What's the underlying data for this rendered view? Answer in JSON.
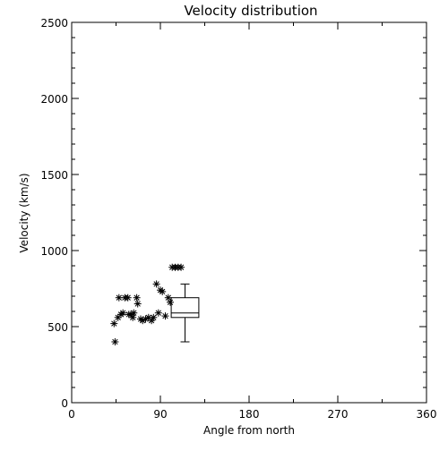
{
  "chart_data": {
    "type": "scatter",
    "title": "Velocity distribution",
    "xlabel": "Angle from north",
    "ylabel": "Velocity (km/s)",
    "xlim": [
      0,
      360
    ],
    "ylim": [
      0,
      2500
    ],
    "xticks": [
      0,
      90,
      180,
      270,
      360
    ],
    "yticks": [
      0,
      500,
      1000,
      1500,
      2000,
      2500
    ],
    "grid": false,
    "marker": "asterisk",
    "colors": {
      "ink": "#000000",
      "background": "#ffffff"
    },
    "series": [
      {
        "points": [
          [
            43,
            520
          ],
          [
            44,
            400
          ],
          [
            47,
            560
          ],
          [
            48,
            690
          ],
          [
            50,
            580
          ],
          [
            52,
            590
          ],
          [
            54,
            690
          ],
          [
            57,
            690
          ],
          [
            58,
            580
          ],
          [
            60,
            580
          ],
          [
            62,
            560
          ],
          [
            63,
            590
          ],
          [
            66,
            690
          ],
          [
            67,
            650
          ],
          [
            70,
            550
          ],
          [
            72,
            540
          ],
          [
            75,
            550
          ],
          [
            78,
            560
          ],
          [
            81,
            540
          ],
          [
            83,
            560
          ],
          [
            86,
            780
          ],
          [
            88,
            590
          ],
          [
            90,
            740
          ],
          [
            92,
            730
          ],
          [
            95,
            570
          ],
          [
            98,
            690
          ],
          [
            100,
            660
          ],
          [
            102,
            890
          ],
          [
            105,
            890
          ],
          [
            108,
            890
          ],
          [
            111,
            890
          ]
        ]
      }
    ],
    "boxplot": {
      "x_left": 101,
      "x_right": 129,
      "min": 400,
      "q1": 560,
      "median": 590,
      "q3": 690,
      "max": 780
    }
  }
}
